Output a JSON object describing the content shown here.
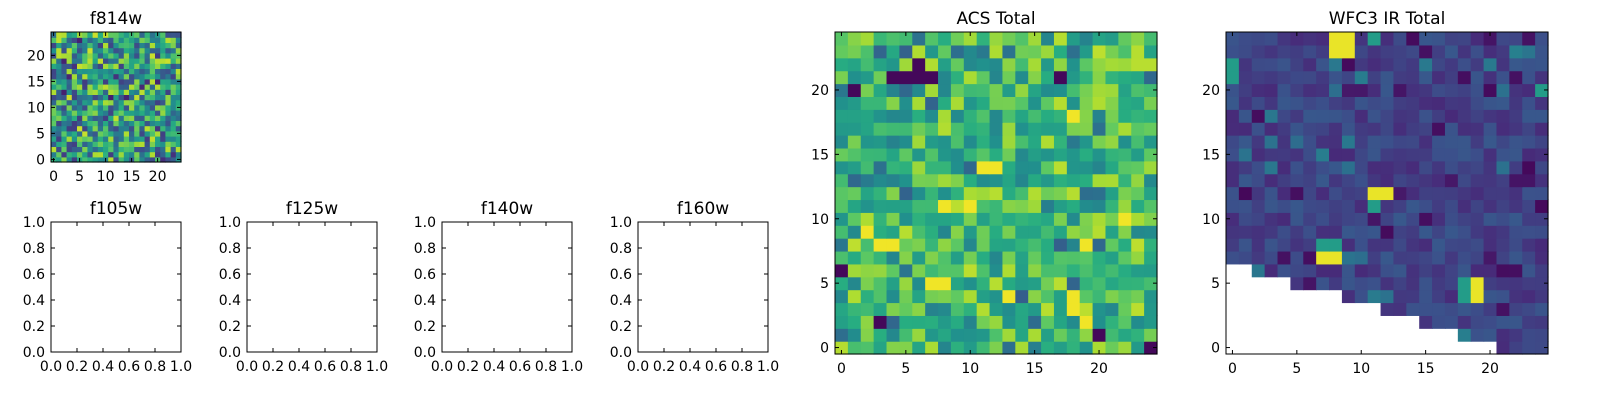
{
  "chart_data": [
    {
      "type": "heatmap",
      "title": "f814w",
      "xlim": [
        -0.5,
        24.5
      ],
      "ylim": [
        -0.5,
        24.5
      ],
      "xticks": [
        0,
        5,
        10,
        15,
        20
      ],
      "xtick_labels": [
        "0",
        "5",
        "10",
        "15",
        "20"
      ],
      "yticks": [
        0,
        5,
        10,
        15,
        20
      ],
      "ytick_labels": [
        "0",
        "5",
        "10",
        "15",
        "20"
      ],
      "colormap": "viridis",
      "grid": false
    },
    {
      "type": "heatmap",
      "title": "f105w",
      "xlim": [
        0,
        1
      ],
      "ylim": [
        0,
        1
      ],
      "xticks": [
        0,
        0.2,
        0.4,
        0.6,
        0.8,
        1.0
      ],
      "xtick_labels": [
        "0.0",
        "0.2",
        "0.4",
        "0.6",
        "0.8",
        "1.0"
      ],
      "yticks": [
        0,
        0.2,
        0.4,
        0.6,
        0.8,
        1.0
      ],
      "ytick_labels": [
        "0.0",
        "0.2",
        "0.4",
        "0.6",
        "0.8",
        "1.0"
      ],
      "empty": true
    },
    {
      "type": "heatmap",
      "title": "f125w",
      "xlim": [
        0,
        1
      ],
      "ylim": [
        0,
        1
      ],
      "xticks": [
        0,
        0.2,
        0.4,
        0.6,
        0.8,
        1.0
      ],
      "xtick_labels": [
        "0.0",
        "0.2",
        "0.4",
        "0.6",
        "0.8",
        "1.0"
      ],
      "yticks": [
        0,
        0.2,
        0.4,
        0.6,
        0.8,
        1.0
      ],
      "ytick_labels": [
        "0.0",
        "0.2",
        "0.4",
        "0.6",
        "0.8",
        "1.0"
      ],
      "empty": true
    },
    {
      "type": "heatmap",
      "title": "f140w",
      "xlim": [
        0,
        1
      ],
      "ylim": [
        0,
        1
      ],
      "xticks": [
        0,
        0.2,
        0.4,
        0.6,
        0.8,
        1.0
      ],
      "xtick_labels": [
        "0.0",
        "0.2",
        "0.4",
        "0.6",
        "0.8",
        "1.0"
      ],
      "yticks": [
        0,
        0.2,
        0.4,
        0.6,
        0.8,
        1.0
      ],
      "ytick_labels": [
        "0.0",
        "0.2",
        "0.4",
        "0.6",
        "0.8",
        "1.0"
      ],
      "empty": true
    },
    {
      "type": "heatmap",
      "title": "f160w",
      "xlim": [
        0,
        1
      ],
      "ylim": [
        0,
        1
      ],
      "xticks": [
        0,
        0.2,
        0.4,
        0.6,
        0.8,
        1.0
      ],
      "xtick_labels": [
        "0.0",
        "0.2",
        "0.4",
        "0.6",
        "0.8",
        "1.0"
      ],
      "yticks": [
        0,
        0.2,
        0.4,
        0.6,
        0.8,
        1.0
      ],
      "ytick_labels": [
        "0.0",
        "0.2",
        "0.4",
        "0.6",
        "0.8",
        "1.0"
      ],
      "empty": true
    },
    {
      "type": "heatmap",
      "title": "ACS Total",
      "xlim": [
        -0.5,
        24.5
      ],
      "ylim": [
        -0.5,
        24.5
      ],
      "xticks": [
        0,
        5,
        10,
        15,
        20
      ],
      "xtick_labels": [
        "0",
        "5",
        "10",
        "15",
        "20"
      ],
      "yticks": [
        0,
        5,
        10,
        15,
        20
      ],
      "ytick_labels": [
        "0",
        "5",
        "10",
        "15",
        "20"
      ],
      "colormap": "viridis",
      "grid": false,
      "dark_pixels": [
        [
          4,
          21
        ],
        [
          5,
          21
        ],
        [
          6,
          21
        ],
        [
          7,
          21
        ],
        [
          6,
          22
        ],
        [
          17,
          21
        ],
        [
          3,
          2
        ],
        [
          20,
          1
        ],
        [
          0,
          6
        ],
        [
          1,
          20
        ],
        [
          24,
          0
        ]
      ],
      "bright_pixels": [
        [
          18,
          18
        ],
        [
          11,
          14
        ],
        [
          12,
          14
        ],
        [
          8,
          11
        ],
        [
          3,
          8
        ],
        [
          4,
          8
        ],
        [
          7,
          5
        ],
        [
          8,
          5
        ],
        [
          13,
          4
        ],
        [
          18,
          4
        ],
        [
          18,
          3
        ],
        [
          19,
          2
        ],
        [
          22,
          10
        ],
        [
          19,
          8
        ],
        [
          10,
          11
        ],
        [
          2,
          9
        ]
      ]
    },
    {
      "type": "heatmap",
      "title": "WFC3 IR Total",
      "xlim": [
        -0.5,
        24.5
      ],
      "ylim": [
        -0.5,
        24.5
      ],
      "xticks": [
        0,
        5,
        10,
        15,
        20
      ],
      "xtick_labels": [
        "0",
        "5",
        "10",
        "15",
        "20"
      ],
      "yticks": [
        0,
        5,
        10,
        15,
        20
      ],
      "ytick_labels": [
        "0",
        "5",
        "10",
        "15",
        "20"
      ],
      "colormap": "viridis",
      "grid": false,
      "missing_lower_bound": [
        7,
        7,
        6,
        6,
        6,
        5,
        5,
        5,
        5,
        4,
        4,
        4,
        3,
        3,
        3,
        2,
        2,
        2,
        1,
        1,
        1,
        0,
        0,
        0,
        0
      ],
      "hot_pixels": [
        [
          8,
          23
        ],
        [
          8,
          24
        ],
        [
          9,
          24
        ],
        [
          9,
          23
        ],
        [
          11,
          12
        ],
        [
          12,
          12
        ],
        [
          7,
          7
        ],
        [
          8,
          7
        ],
        [
          19,
          4
        ],
        [
          19,
          5
        ]
      ],
      "warm_pixels": [
        [
          7,
          8
        ],
        [
          8,
          8
        ],
        [
          11,
          11
        ],
        [
          18,
          4
        ],
        [
          18,
          5
        ],
        [
          0,
          22
        ],
        [
          0,
          21
        ],
        [
          24,
          20
        ],
        [
          11,
          24
        ]
      ]
    }
  ]
}
